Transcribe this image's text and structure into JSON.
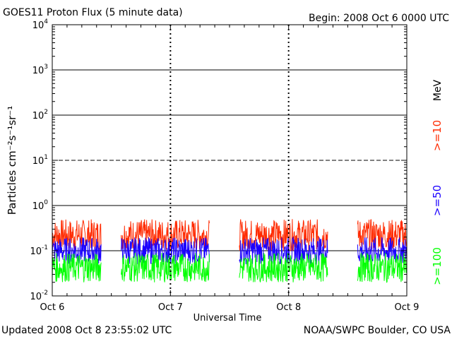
{
  "header": {
    "title": "GOES11 Proton Flux (5 minute data)",
    "begin": "Begin: 2008 Oct 6 0000 UTC"
  },
  "footer": {
    "updated": "Updated 2008 Oct  8 23:55:02 UTC",
    "credit": "NOAA/SWPC Boulder, CO USA"
  },
  "chart_data": {
    "type": "line",
    "title": "GOES11 Proton Flux (5 minute data)",
    "xlabel": "Universal Time",
    "ylabel": "Particles cm⁻²s⁻¹sr⁻¹",
    "yscale": "log",
    "ylim": [
      0.01,
      10000
    ],
    "xlim": [
      "2008-10-06 00:00",
      "2008-10-09 00:00"
    ],
    "x_ticks": [
      "Oct 6",
      "Oct 7",
      "Oct 8",
      "Oct 9"
    ],
    "y_ticks": [
      {
        "base": "10",
        "exp": "-2"
      },
      {
        "base": "10",
        "exp": "-1"
      },
      {
        "base": "10",
        "exp": "0"
      },
      {
        "base": "10",
        "exp": "1"
      },
      {
        "base": "10",
        "exp": "2"
      },
      {
        "base": "10",
        "exp": "3"
      },
      {
        "base": "10",
        "exp": "4"
      }
    ],
    "reference_lines": [
      {
        "value": 1000,
        "style": "solid"
      },
      {
        "value": 100,
        "style": "solid"
      },
      {
        "value": 10,
        "style": "dashed"
      },
      {
        "value": 1,
        "style": "solid"
      },
      {
        "value": 0.1,
        "style": "solid"
      }
    ],
    "data_gaps": [
      {
        "from": "2008-10-06 10:00",
        "to": "2008-10-06 14:00"
      },
      {
        "from": "2008-10-07 08:00",
        "to": "2008-10-07 14:00"
      },
      {
        "from": "2008-10-08 08:00",
        "to": "2008-10-08 14:00"
      }
    ],
    "legend_unit": "MeV",
    "series": [
      {
        "name": ">=10",
        "color": "#ff2a00",
        "level": 0.2,
        "range": [
          0.1,
          0.5
        ],
        "peak": 0.7
      },
      {
        "name": ">=50",
        "color": "#1a00ff",
        "level": 0.09,
        "range": [
          0.05,
          0.2
        ]
      },
      {
        "name": ">=100",
        "color": "#00ff00",
        "level": 0.04,
        "range": [
          0.02,
          0.09
        ]
      }
    ]
  }
}
